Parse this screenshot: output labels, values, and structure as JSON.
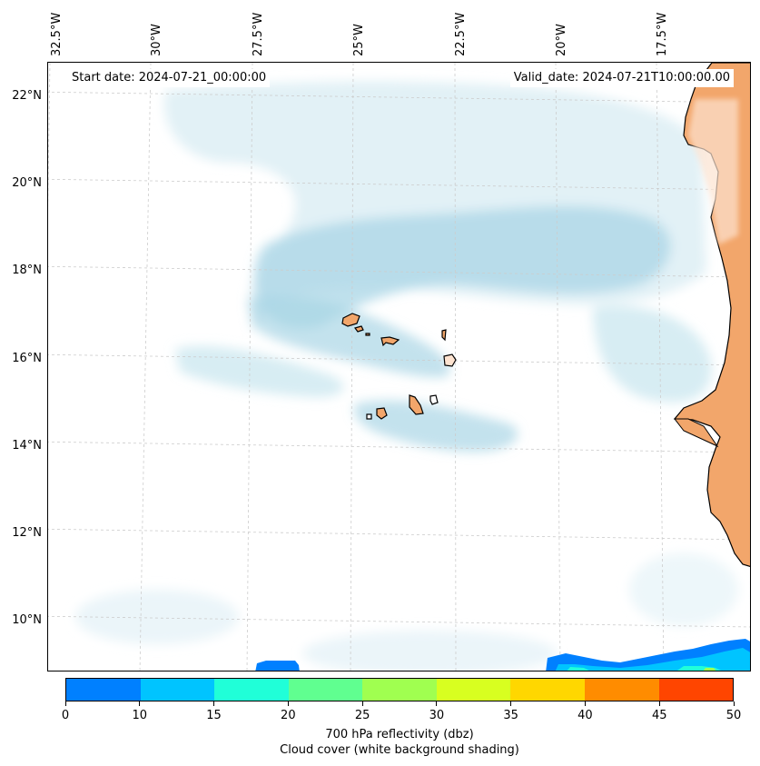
{
  "map": {
    "start_label": "Start date: 2024-07-21_00:00:00",
    "valid_label": "Valid_date: 2024-07-21T10:00:00.00",
    "lon_labels": [
      "32.5°W",
      "30°W",
      "27.5°W",
      "25°W",
      "22.5°W",
      "20°W",
      "17.5°W"
    ],
    "lat_labels": [
      "22°N",
      "20°N",
      "18°N",
      "16°N",
      "14°N",
      "12°N",
      "10°N"
    ],
    "land_color": "#f2a66b",
    "cloud_color": "#a9d6e5",
    "grid_color": "#cccccc"
  },
  "colorbar": {
    "ticks": [
      "0",
      "10",
      "15",
      "20",
      "25",
      "30",
      "35",
      "40",
      "45",
      "50"
    ],
    "colors": [
      "#0080ff",
      "#00c4ff",
      "#20ffd8",
      "#60ff90",
      "#a0ff50",
      "#d8ff20",
      "#ffd700",
      "#ff8c00",
      "#ff4500"
    ],
    "title_line1": "700 hPa reflectivity (dbz)",
    "title_line2": "Cloud cover (white background shading)"
  }
}
